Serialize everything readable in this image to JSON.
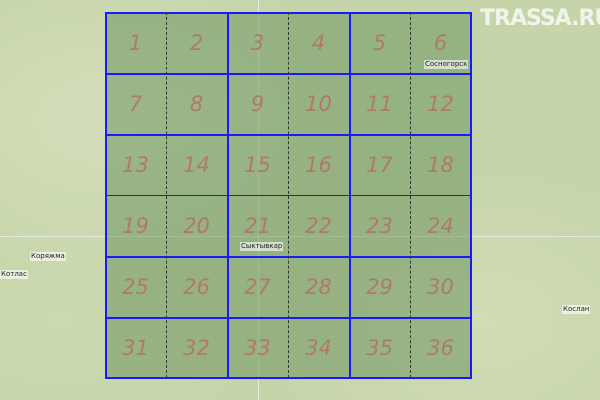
{
  "logo": "TRASSA.RU",
  "cities": {
    "syktyvkar": "Сыктывкар",
    "sosnogorsk": "Сосногорск",
    "kotlas": "Котлас",
    "korazhma": "Коряжма",
    "koslan": "Кослан"
  },
  "grid": {
    "cells": [
      "1",
      "2",
      "3",
      "4",
      "5",
      "6",
      "7",
      "8",
      "9",
      "10",
      "11",
      "12",
      "13",
      "14",
      "15",
      "16",
      "17",
      "18",
      "19",
      "20",
      "21",
      "22",
      "23",
      "24",
      "25",
      "26",
      "27",
      "28",
      "29",
      "30",
      "31",
      "32",
      "33",
      "34",
      "35",
      "36"
    ]
  },
  "colors": {
    "grid_line": "#1a1aff",
    "cell_number": "#b07a68",
    "sheet_overlay": "#6e965f"
  }
}
